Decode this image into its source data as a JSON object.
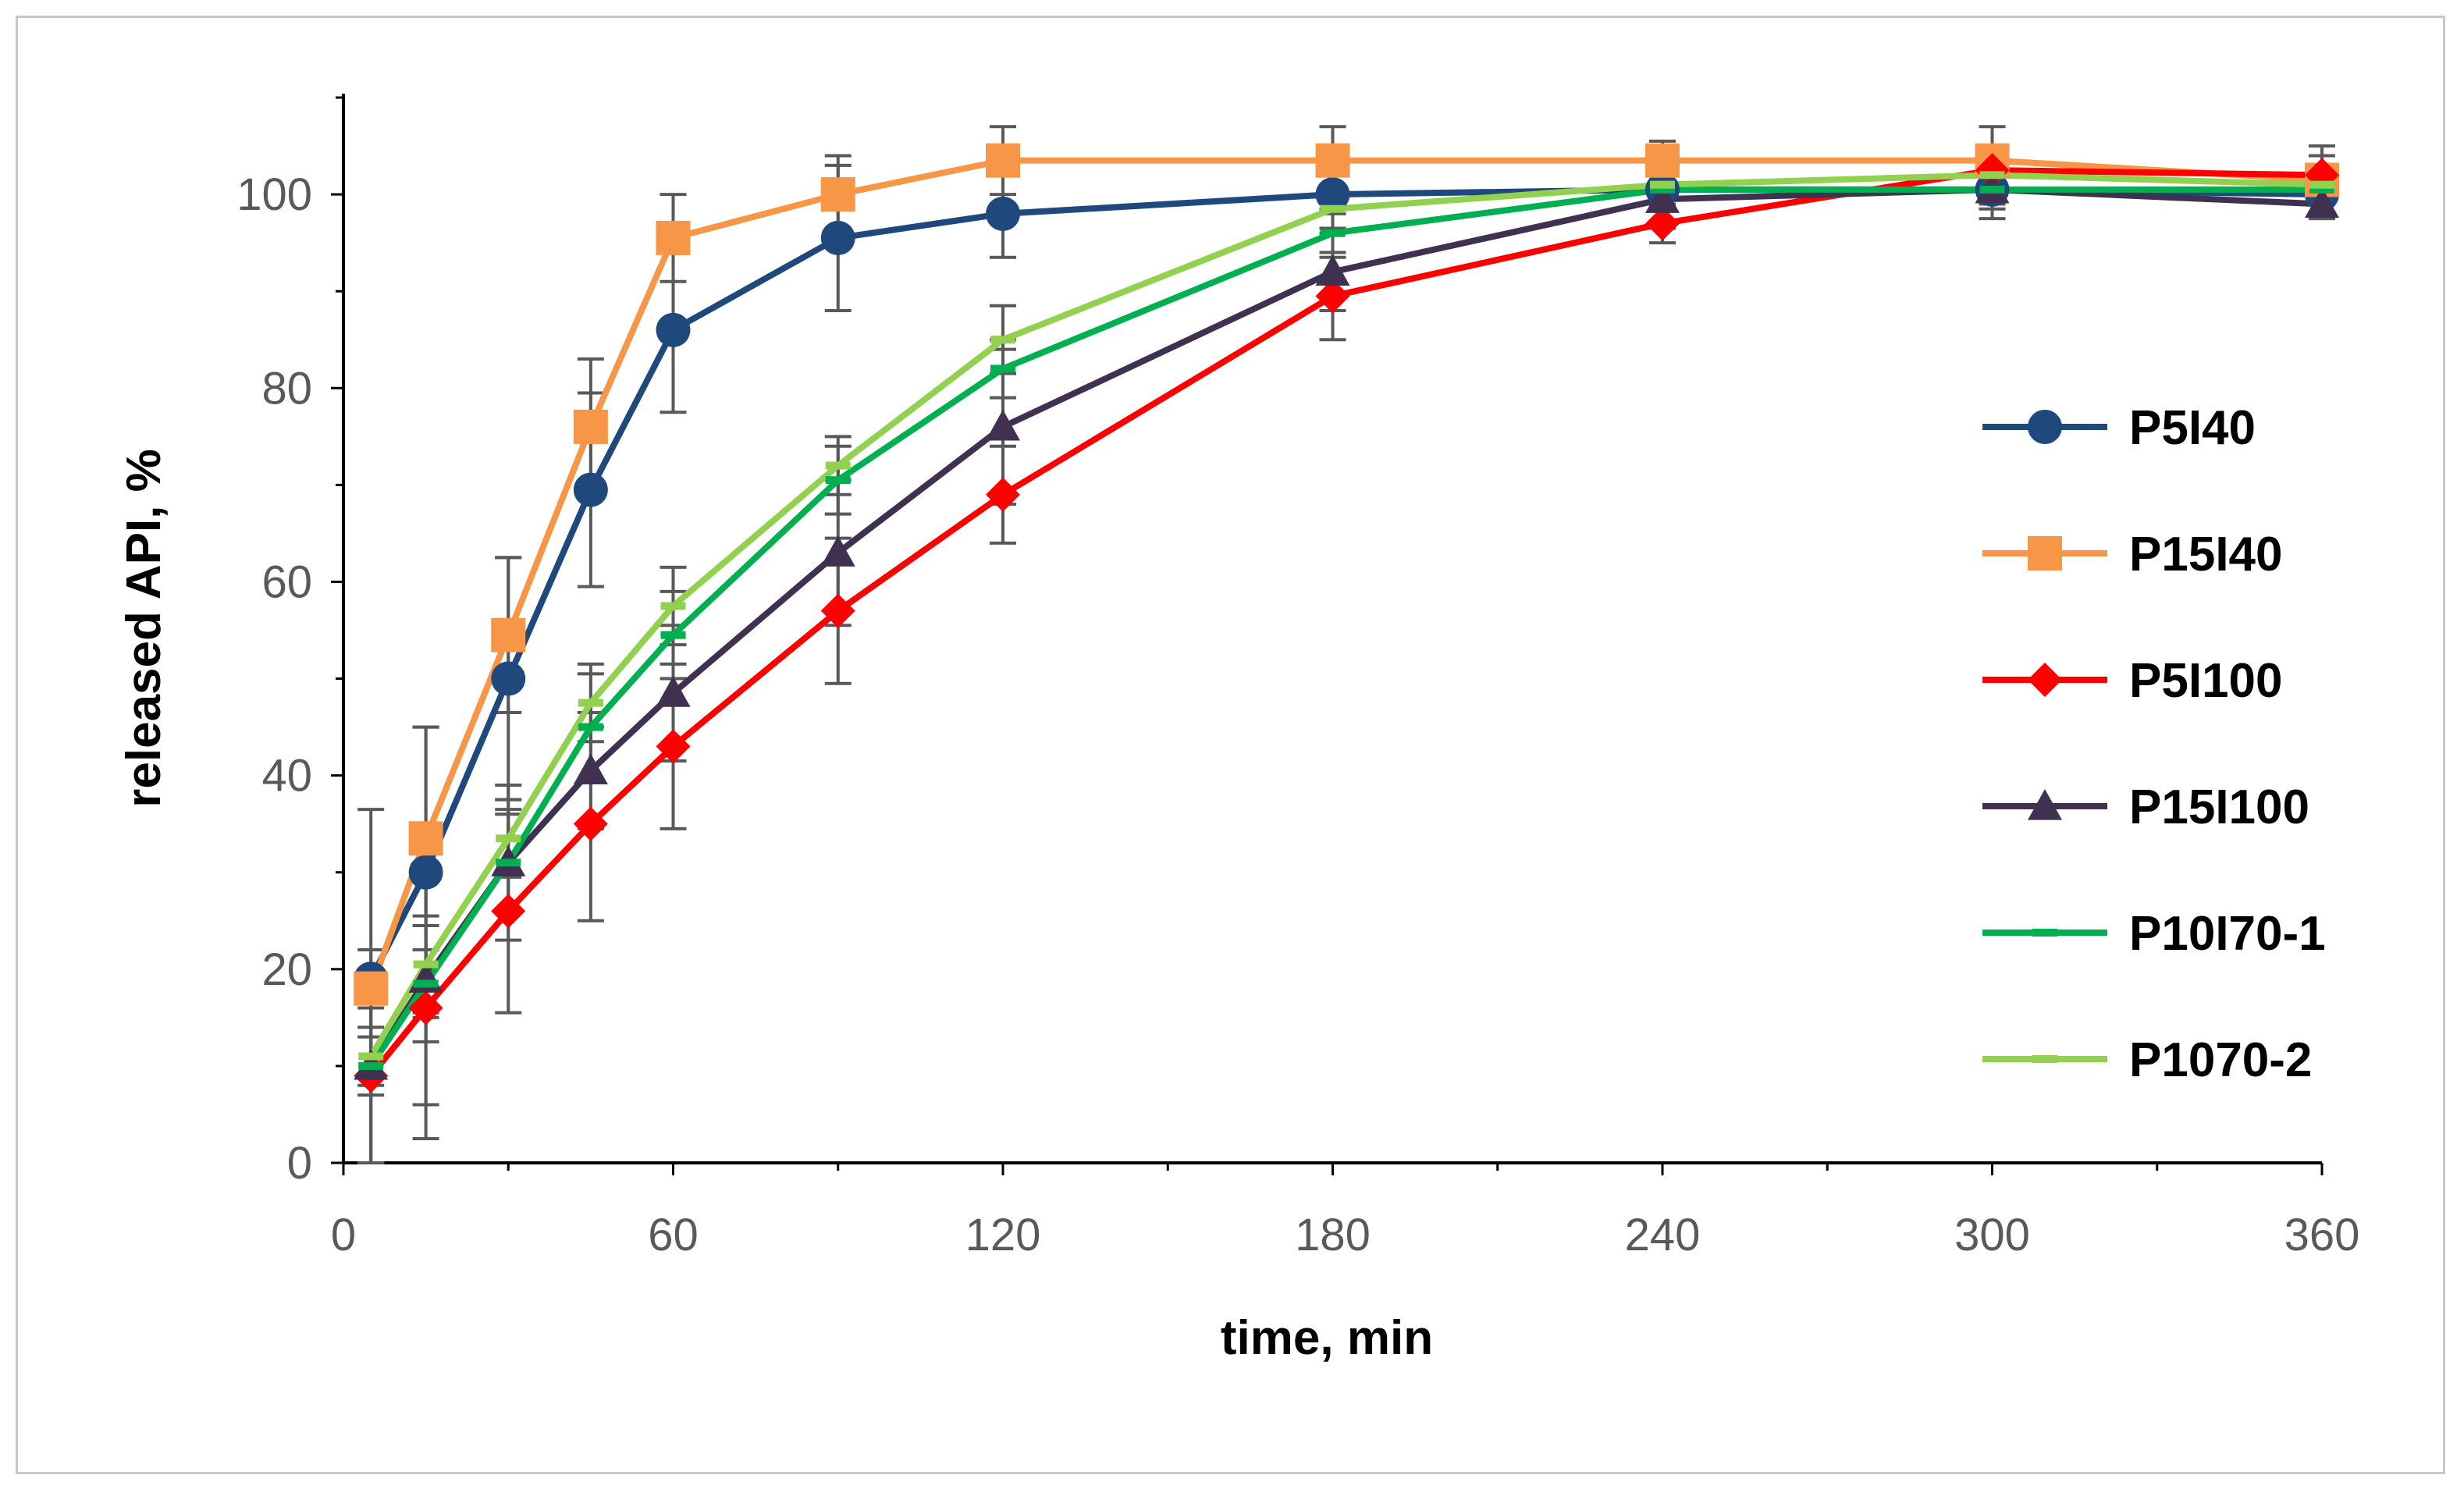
{
  "chart_data": {
    "type": "line",
    "xlabel": "time, min",
    "ylabel": "released API, %",
    "xlim": [
      0,
      360
    ],
    "ylim": [
      0,
      110
    ],
    "xticks": [
      0,
      60,
      120,
      180,
      240,
      300,
      360
    ],
    "xminor_step": 30,
    "yticks": [
      0,
      20,
      40,
      60,
      80,
      100
    ],
    "yminor_step": 10,
    "grid": false,
    "legend_position": "right",
    "x": [
      5,
      15,
      30,
      45,
      60,
      90,
      120,
      180,
      240,
      300,
      360
    ],
    "series": [
      {
        "name": "P5I40",
        "color": "#1f497d",
        "marker": "circle",
        "values": [
          19,
          30,
          50,
          69.5,
          86,
          95.5,
          98,
          100,
          100.5,
          100.5,
          100
        ],
        "errors": [
          3,
          15,
          12.5,
          10,
          8.5,
          7.5,
          4.5,
          2,
          1.5,
          2,
          2
        ]
      },
      {
        "name": "P15I40",
        "color": "#f79646",
        "marker": "square",
        "values": [
          18,
          33.5,
          54.5,
          76,
          95.5,
          100,
          103.5,
          103.5,
          103.5,
          103.5,
          101.5
        ],
        "errors": [
          18.5,
          11.5,
          8,
          7,
          4.5,
          4,
          3.5,
          3.5,
          2,
          3.5,
          3.5
        ]
      },
      {
        "name": "P5I100",
        "color": "#ff0000",
        "marker": "diamond",
        "values": [
          9,
          16,
          26,
          35,
          43,
          57,
          69,
          89.5,
          97,
          102.5,
          102
        ],
        "errors": [
          9,
          13.5,
          10.5,
          10,
          8.5,
          7.5,
          5,
          4.5,
          2,
          2,
          2
        ]
      },
      {
        "name": "P15I100",
        "color": "#403151",
        "marker": "triangle",
        "values": [
          10,
          19,
          31,
          40.5,
          48.5,
          63,
          76,
          92,
          99.5,
          100.5,
          99
        ],
        "errors": [
          10,
          13,
          8,
          6,
          7,
          7.5,
          8,
          4,
          3,
          3,
          1.5
        ]
      },
      {
        "name": "P10I70-1",
        "color": "#00b050",
        "marker": "dash",
        "values": [
          10,
          18.5,
          31,
          45,
          54.5,
          70.5,
          82,
          96,
          100.5,
          100.5,
          100.5
        ],
        "errors": [
          3,
          6,
          5,
          5.5,
          4.5,
          3.5,
          3,
          2.5,
          1.5,
          1.5,
          1.5
        ]
      },
      {
        "name": "P1070-2",
        "color": "#92d050",
        "marker": "dash",
        "values": [
          11,
          20.5,
          33.5,
          47.5,
          57.5,
          72,
          85,
          98.5,
          101,
          102,
          101
        ],
        "errors": [
          3,
          5,
          4,
          4,
          4,
          3,
          3.5,
          2,
          1.5,
          1.5,
          1.5
        ]
      }
    ]
  }
}
